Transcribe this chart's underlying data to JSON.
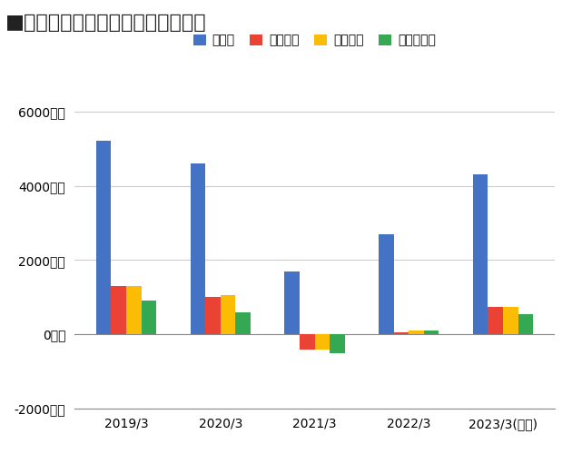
{
  "title_prefix": "▪",
  "title_main": "オリエンタルランドの業績の推移",
  "categories": [
    "2019/3",
    "2020/3",
    "2021/3",
    "2022/3",
    "2023/3(予想)"
  ],
  "series": {
    "売上高": [
      5200,
      4600,
      1700,
      2700,
      4300
    ],
    "営業利益": [
      1300,
      1000,
      -400,
      50,
      750
    ],
    "経常利益": [
      1300,
      1050,
      -400,
      100,
      750
    ],
    "当期純利益": [
      900,
      600,
      -500,
      100,
      550
    ]
  },
  "colors": {
    "売上高": "#4472C4",
    "営業利益": "#EA4335",
    "経常利益": "#FBBC05",
    "当期純利益": "#34A853"
  },
  "ylim": [
    -2000,
    6800
  ],
  "yticks": [
    -2000,
    0,
    2000,
    4000,
    6000
  ],
  "ytick_labels": [
    "-2000億円",
    "0億円",
    "2000億円",
    "4000億円",
    "6000億円"
  ],
  "background_color": "#ffffff",
  "grid_color": "#cccccc",
  "bar_width": 0.16,
  "title_fontsize": 16,
  "tick_fontsize": 10,
  "legend_fontsize": 10
}
